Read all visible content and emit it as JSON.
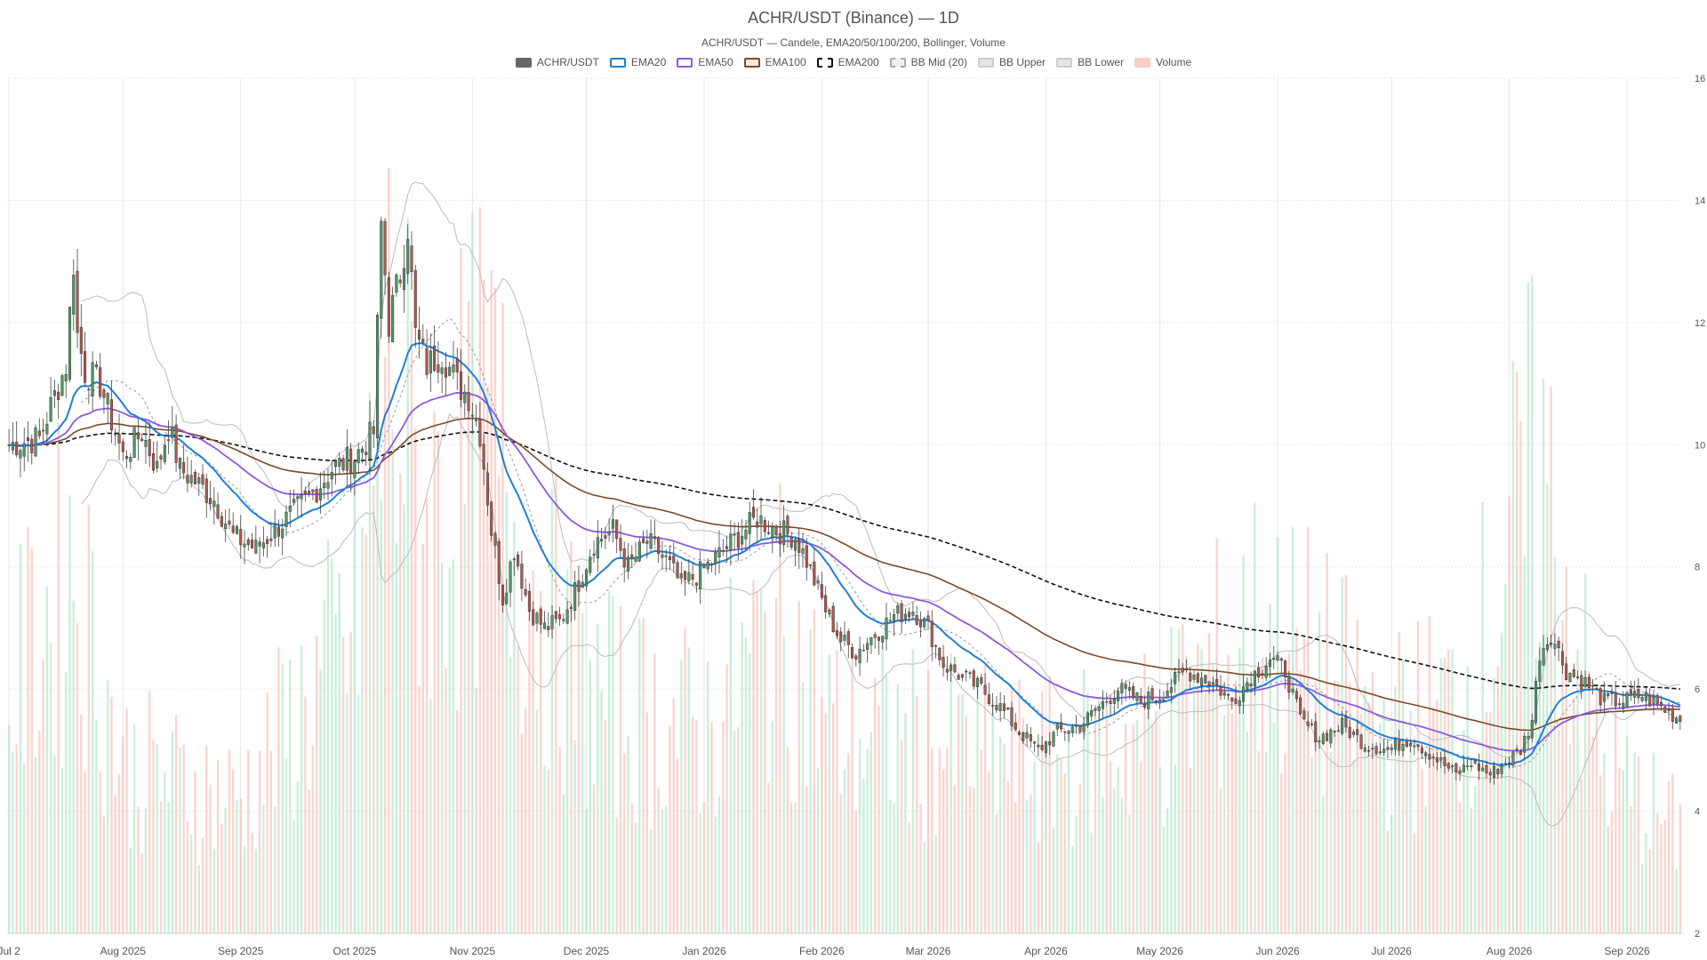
{
  "title": "ACHR/USDT (Binance) — 1D",
  "subtitle": "ACHR/USDT — Candele, EMA20/50/100/200, Bollinger, Volume",
  "legend": [
    {
      "label": "ACHR/USDT",
      "key": "price",
      "fill": "#666666",
      "border": "#666666",
      "dashed": false
    },
    {
      "label": "EMA20",
      "key": "ema20",
      "fill": "#ffffff",
      "border": "#1e7fd8",
      "dashed": false
    },
    {
      "label": "EMA50",
      "key": "ema50",
      "fill": "#ffffff",
      "border": "#8a5ae0",
      "dashed": false
    },
    {
      "label": "EMA100",
      "key": "ema100",
      "fill": "#f5e9e0",
      "border": "#7a4a2a",
      "dashed": false
    },
    {
      "label": "EMA200",
      "key": "ema200",
      "fill": "#ffffff",
      "border": "#111111",
      "dashed": true
    },
    {
      "label": "BB Mid (20)",
      "key": "bbmid",
      "fill": "#eeeeee",
      "border": "#aaaaaa",
      "dashed": true
    },
    {
      "label": "BB Upper",
      "key": "bbup",
      "fill": "#e6e6e6",
      "border": "#cccccc",
      "dashed": false
    },
    {
      "label": "BB Lower",
      "key": "bblow",
      "fill": "#e6e6e6",
      "border": "#cccccc",
      "dashed": false
    },
    {
      "label": "Volume",
      "key": "volume",
      "fill": "#f8cfc7",
      "border": "#f8cfc7",
      "dashed": false
    }
  ],
  "colors": {
    "up": "#4f9a6a",
    "down": "#b3594c",
    "up_volume": "#a6e3bf",
    "down_volume": "#f6b8ad",
    "ema20": "#1e7fd8",
    "ema50": "#8a5ae0",
    "ema100": "#7a4a2a",
    "ema200": "#111111",
    "bbmid": "#999999",
    "bbband": "#bbbbbb",
    "grid": "#e6e6e6"
  },
  "chart_data": {
    "type": "candlestick",
    "title": "ACHR/USDT (Binance) — 1D",
    "subtitle": "ACHR/USDT — Candele, EMA20/50/100/200, Bollinger, Volume",
    "y_axis": {
      "position": "right",
      "ylim": [
        2,
        16
      ],
      "ticks": [
        2,
        4,
        6,
        8,
        10,
        12,
        14,
        16
      ]
    },
    "x_axis": {
      "start_date": "2025-07-02",
      "end_date": "2026-09-15",
      "tick_labels": [
        {
          "date": "2025-07-02",
          "label": "Jul 2"
        },
        {
          "date": "2025-08-01",
          "label": "Aug 2025"
        },
        {
          "date": "2025-09-01",
          "label": "Sep 2025"
        },
        {
          "date": "2025-10-01",
          "label": "Oct 2025"
        },
        {
          "date": "2025-11-01",
          "label": "Nov 2025"
        },
        {
          "date": "2025-12-01",
          "label": "Dec 2025"
        },
        {
          "date": "2026-01-01",
          "label": "Jan 2026"
        },
        {
          "date": "2026-02-01",
          "label": "Feb 2026"
        },
        {
          "date": "2026-03-01",
          "label": "Mar 2026"
        },
        {
          "date": "2026-04-01",
          "label": "Apr 2026"
        },
        {
          "date": "2026-05-01",
          "label": "May 2026"
        },
        {
          "date": "2026-06-01",
          "label": "Jun 2026"
        },
        {
          "date": "2026-07-01",
          "label": "Jul 2026"
        },
        {
          "date": "2026-08-01",
          "label": "Aug 2026"
        },
        {
          "date": "2026-09-01",
          "label": "Sep 2026"
        }
      ]
    },
    "grid": true,
    "legend_position": "top-center",
    "close_anchors": [
      [
        "2025-07-02",
        10.0
      ],
      [
        "2025-07-10",
        10.1
      ],
      [
        "2025-07-14",
        10.8
      ],
      [
        "2025-07-17",
        11.3
      ],
      [
        "2025-07-19",
        13.0
      ],
      [
        "2025-07-20",
        11.8
      ],
      [
        "2025-07-22",
        11.2
      ],
      [
        "2025-07-26",
        11.0
      ],
      [
        "2025-07-29",
        10.4
      ],
      [
        "2025-08-01",
        9.8
      ],
      [
        "2025-08-06",
        10.2
      ],
      [
        "2025-08-10",
        9.6
      ],
      [
        "2025-08-13",
        10.3
      ],
      [
        "2025-08-16",
        9.6
      ],
      [
        "2025-08-20",
        9.4
      ],
      [
        "2025-08-25",
        9.1
      ],
      [
        "2025-08-30",
        8.5
      ],
      [
        "2025-09-05",
        8.3
      ],
      [
        "2025-09-10",
        8.6
      ],
      [
        "2025-09-15",
        8.9
      ],
      [
        "2025-09-20",
        9.2
      ],
      [
        "2025-09-25",
        9.6
      ],
      [
        "2025-10-01",
        9.8
      ],
      [
        "2025-10-06",
        10.2
      ],
      [
        "2025-10-08",
        13.6
      ],
      [
        "2025-10-10",
        12.0
      ],
      [
        "2025-10-13",
        12.8
      ],
      [
        "2025-10-15",
        13.6
      ],
      [
        "2025-10-17",
        11.8
      ],
      [
        "2025-10-20",
        11.3
      ],
      [
        "2025-10-24",
        11.5
      ],
      [
        "2025-10-28",
        11.0
      ],
      [
        "2025-10-31",
        10.8
      ],
      [
        "2025-11-03",
        10.2
      ],
      [
        "2025-11-06",
        8.6
      ],
      [
        "2025-11-09",
        7.5
      ],
      [
        "2025-11-12",
        8.3
      ],
      [
        "2025-11-16",
        7.3
      ],
      [
        "2025-11-20",
        7.0
      ],
      [
        "2025-11-24",
        7.1
      ],
      [
        "2025-11-28",
        7.6
      ],
      [
        "2025-12-03",
        8.4
      ],
      [
        "2025-12-08",
        8.6
      ],
      [
        "2025-12-12",
        8.0
      ],
      [
        "2025-12-17",
        8.4
      ],
      [
        "2025-12-21",
        8.2
      ],
      [
        "2025-12-26",
        7.7
      ],
      [
        "2025-12-31",
        7.9
      ],
      [
        "2026-01-05",
        8.2
      ],
      [
        "2026-01-10",
        8.5
      ],
      [
        "2026-01-15",
        8.8
      ],
      [
        "2026-01-20",
        8.6
      ],
      [
        "2026-01-25",
        8.5
      ],
      [
        "2026-01-28",
        8.1
      ],
      [
        "2026-02-02",
        7.3
      ],
      [
        "2026-02-06",
        6.8
      ],
      [
        "2026-02-10",
        6.6
      ],
      [
        "2026-02-15",
        6.9
      ],
      [
        "2026-02-20",
        7.2
      ],
      [
        "2026-02-25",
        7.3
      ],
      [
        "2026-03-01",
        7.0
      ],
      [
        "2026-03-05",
        6.4
      ],
      [
        "2026-03-10",
        6.2
      ],
      [
        "2026-03-15",
        6.0
      ],
      [
        "2026-03-20",
        5.7
      ],
      [
        "2026-03-25",
        5.3
      ],
      [
        "2026-03-30",
        5.0
      ],
      [
        "2026-04-04",
        5.3
      ],
      [
        "2026-04-10",
        5.4
      ],
      [
        "2026-04-15",
        5.7
      ],
      [
        "2026-04-20",
        6.0
      ],
      [
        "2026-04-26",
        5.8
      ],
      [
        "2026-05-01",
        5.9
      ],
      [
        "2026-05-08",
        6.3
      ],
      [
        "2026-05-15",
        6.1
      ],
      [
        "2026-05-20",
        5.8
      ],
      [
        "2026-05-25",
        6.2
      ],
      [
        "2026-05-30",
        6.5
      ],
      [
        "2026-06-03",
        6.3
      ],
      [
        "2026-06-07",
        5.5
      ],
      [
        "2026-06-12",
        5.2
      ],
      [
        "2026-06-18",
        5.4
      ],
      [
        "2026-06-24",
        5.1
      ],
      [
        "2026-06-30",
        5.0
      ],
      [
        "2026-07-06",
        5.2
      ],
      [
        "2026-07-12",
        4.9
      ],
      [
        "2026-07-18",
        4.6
      ],
      [
        "2026-07-22",
        4.8
      ],
      [
        "2026-07-27",
        4.6
      ],
      [
        "2026-07-31",
        4.8
      ],
      [
        "2026-08-04",
        5.0
      ],
      [
        "2026-08-07",
        5.5
      ],
      [
        "2026-08-09",
        6.6
      ],
      [
        "2026-08-12",
        6.9
      ],
      [
        "2026-08-16",
        6.3
      ],
      [
        "2026-08-21",
        6.1
      ],
      [
        "2026-08-26",
        5.8
      ],
      [
        "2026-08-31",
        5.8
      ],
      [
        "2026-09-05",
        5.9
      ],
      [
        "2026-09-10",
        5.7
      ],
      [
        "2026-09-15",
        5.5
      ]
    ],
    "volume_note": "Volume plotted as overlay bars from chart bottom, same color coding as candles; approx peak height reaches 14 on price scale (around Oct 2025 / Nov 2025) and 12 around Aug 2026",
    "volume_anchors": [
      [
        "2025-07-02",
        0.35
      ],
      [
        "2025-07-19",
        0.55
      ],
      [
        "2025-08-01",
        0.25
      ],
      [
        "2025-09-01",
        0.2
      ],
      [
        "2025-10-01",
        0.45
      ],
      [
        "2025-10-10",
        0.85
      ],
      [
        "2025-10-20",
        0.6
      ],
      [
        "2025-11-05",
        0.75
      ],
      [
        "2025-11-15",
        0.55
      ],
      [
        "2025-12-01",
        0.35
      ],
      [
        "2026-01-01",
        0.3
      ],
      [
        "2026-01-20",
        0.45
      ],
      [
        "2026-02-05",
        0.3
      ],
      [
        "2026-03-01",
        0.28
      ],
      [
        "2026-04-01",
        0.25
      ],
      [
        "2026-05-01",
        0.3
      ],
      [
        "2026-05-25",
        0.45
      ],
      [
        "2026-06-10",
        0.4
      ],
      [
        "2026-07-01",
        0.3
      ],
      [
        "2026-07-20",
        0.35
      ],
      [
        "2026-08-09",
        0.7
      ],
      [
        "2026-08-25",
        0.25
      ],
      [
        "2026-09-15",
        0.15
      ]
    ]
  }
}
